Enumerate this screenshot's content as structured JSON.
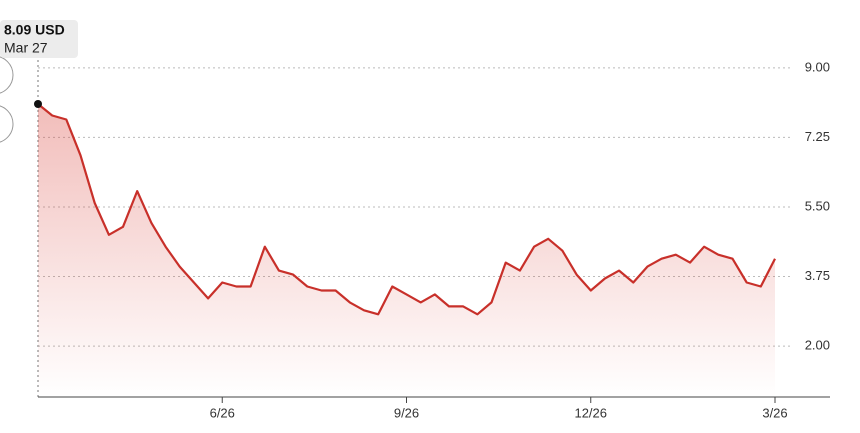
{
  "chart_data": {
    "type": "line",
    "annotation": {
      "value_label": "8.09 USD",
      "date": "Mar 27"
    },
    "x": [
      null,
      null,
      null,
      null,
      null,
      null,
      null,
      null,
      null,
      null,
      null,
      null,
      null,
      "6/26",
      null,
      null,
      null,
      null,
      null,
      null,
      null,
      null,
      null,
      null,
      null,
      null,
      "9/26",
      null,
      null,
      null,
      null,
      null,
      null,
      null,
      null,
      null,
      null,
      null,
      null,
      "12/26",
      null,
      null,
      null,
      null,
      null,
      null,
      null,
      null,
      null,
      null,
      null,
      null,
      "3/26"
    ],
    "series": [
      {
        "color": "#c8302a",
        "values": [
          8.09,
          7.8,
          7.7,
          6.8,
          5.6,
          4.8,
          5.0,
          5.9,
          5.1,
          4.5,
          4.0,
          3.6,
          3.2,
          3.6,
          3.5,
          3.5,
          4.5,
          3.9,
          3.8,
          3.5,
          3.4,
          3.4,
          3.1,
          2.9,
          2.8,
          3.5,
          3.3,
          3.1,
          3.3,
          3.0,
          3.0,
          2.8,
          3.1,
          4.1,
          3.9,
          4.5,
          4.7,
          4.4,
          3.8,
          3.4,
          3.7,
          3.9,
          3.6,
          4.0,
          4.2,
          4.3,
          4.1,
          4.5,
          4.3,
          4.2,
          3.6,
          3.5,
          4.2
        ]
      }
    ],
    "ylim": [
      0.72,
      9.7
    ],
    "yticks": [
      {
        "value": 2,
        "label": "2.00"
      },
      {
        "value": 3.75,
        "label": "3.75"
      },
      {
        "value": 5.5,
        "label": "5.50"
      },
      {
        "value": 7.25,
        "label": "7.25"
      },
      {
        "value": 9,
        "label": "9.00"
      }
    ],
    "grid": true
  }
}
